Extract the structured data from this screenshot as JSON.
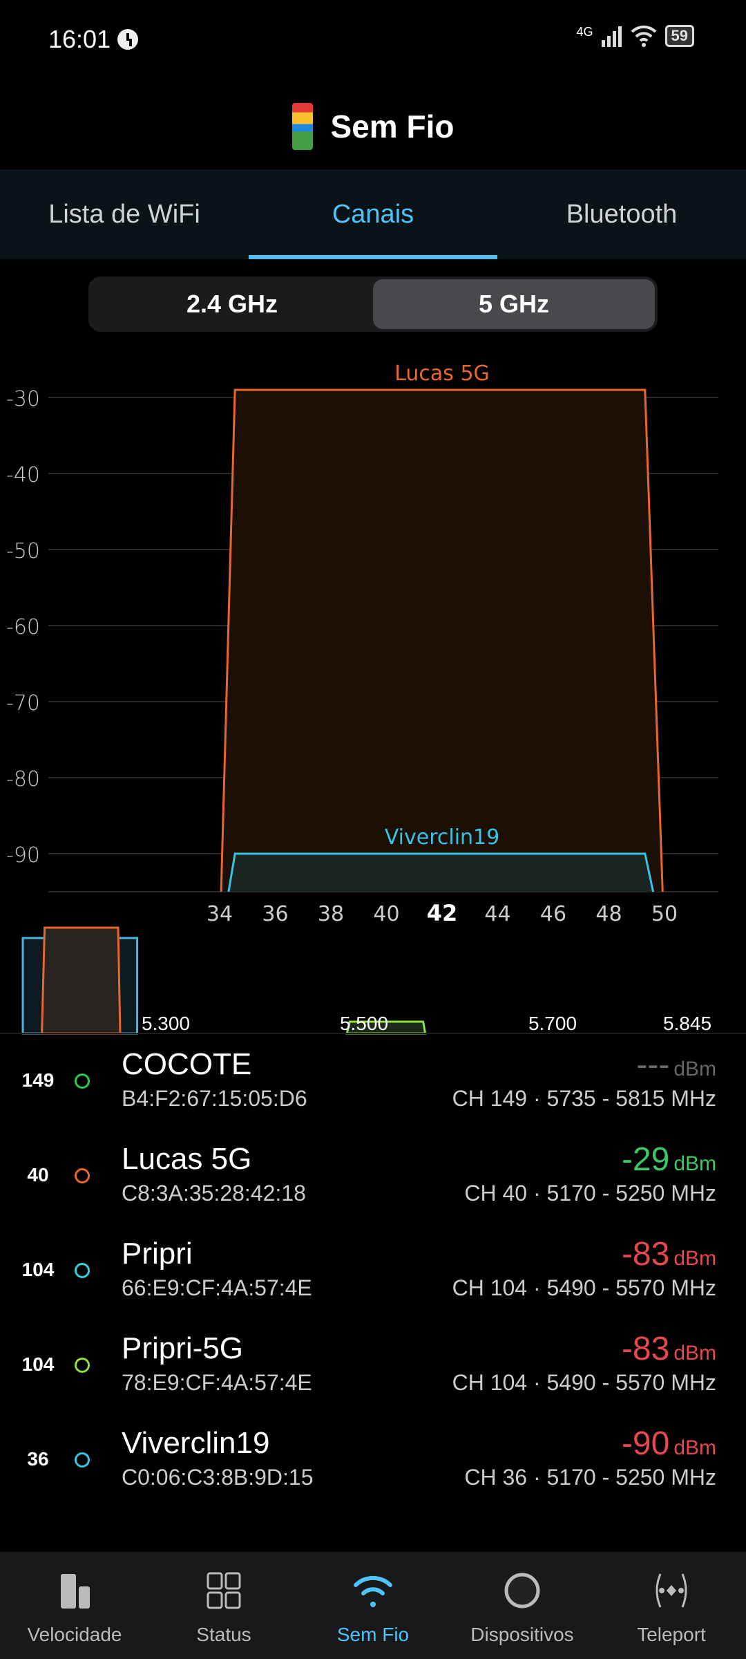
{
  "status": {
    "time": "16:01",
    "network": "4G",
    "battery": "59"
  },
  "header": {
    "title": "Sem Fio"
  },
  "tabs": [
    {
      "label": "Lista de WiFi"
    },
    {
      "label": "Canais",
      "active": true
    },
    {
      "label": "Bluetooth"
    }
  ],
  "band": {
    "options": [
      "2.4 GHz",
      "5 GHz"
    ],
    "selected": "5 GHz"
  },
  "colors": {
    "accent": "#4fc3f7",
    "good": "#3cc864",
    "bad": "#e5484d",
    "none": "#666666"
  },
  "chart_data": {
    "type": "area",
    "ylim": [
      -95,
      -25
    ],
    "yticks": [
      "-30",
      "-40",
      "-50",
      "-60",
      "-70",
      "-80",
      "-90"
    ],
    "xticks": [
      "34",
      "36",
      "38",
      "40",
      "42",
      "44",
      "46",
      "48",
      "50"
    ],
    "xhighlight": "42",
    "xlim": [
      33,
      51.5
    ],
    "series": [
      {
        "name": "Lucas 5G",
        "center_channel": 42,
        "width_channels": 16,
        "value": -29,
        "color": "#e8672a"
      },
      {
        "name": "Viverclin19",
        "center_channel": 42,
        "width_channels": 16,
        "value": -90,
        "color": "#35c4e6"
      }
    ],
    "overview": {
      "freq_labels": [
        "5.300",
        "5.500",
        "5.700",
        "5.845"
      ],
      "freq_ticks": [
        5300,
        5500,
        5700,
        5845
      ],
      "bands": [
        {
          "from": 5170,
          "to": 5250,
          "value": -29,
          "color": "#e8672a"
        },
        {
          "from": 5490,
          "to": 5570,
          "value": -83,
          "color": "#8fe03a"
        }
      ],
      "viewport": [
        5150,
        5270
      ]
    }
  },
  "networks": [
    {
      "channel": "149",
      "name": "COCOTE",
      "mac": "B4:F2:67:15:05:D6",
      "signal": "---",
      "unit": "dBm",
      "info": "CH 149 · 5735 - 5815 MHz",
      "color": "#2ec84a",
      "signal_color": "#666666"
    },
    {
      "channel": "40",
      "name": "Lucas 5G",
      "mac": "C8:3A:35:28:42:18",
      "signal": "-29",
      "unit": "dBm",
      "info": "CH 40 · 5170 - 5250 MHz",
      "color": "#e8672a",
      "signal_color": "#3cc864"
    },
    {
      "channel": "104",
      "name": "Pripri",
      "mac": "66:E9:CF:4A:57:4E",
      "signal": "-83",
      "unit": "dBm",
      "info": "CH 104 · 5490 - 5570 MHz",
      "color": "#35d0d8",
      "signal_color": "#e5484d"
    },
    {
      "channel": "104",
      "name": "Pripri-5G",
      "mac": "78:E9:CF:4A:57:4E",
      "signal": "-83",
      "unit": "dBm",
      "info": "CH 104 · 5490 - 5570 MHz",
      "color": "#8fe03a",
      "signal_color": "#e5484d"
    },
    {
      "channel": "36",
      "name": "Viverclin19",
      "mac": "C0:06:C3:8B:9D:15",
      "signal": "-90",
      "unit": "dBm",
      "info": "CH 36 · 5170 - 5250 MHz",
      "color": "#35c4e6",
      "signal_color": "#e5484d"
    }
  ],
  "nav": [
    {
      "label": "Velocidade",
      "icon": "speed-bars-icon"
    },
    {
      "label": "Status",
      "icon": "grid-icon"
    },
    {
      "label": "Sem Fio",
      "icon": "wifi-icon",
      "active": true
    },
    {
      "label": "Dispositivos",
      "icon": "circle-icon"
    },
    {
      "label": "Teleport",
      "icon": "teleport-icon"
    }
  ]
}
